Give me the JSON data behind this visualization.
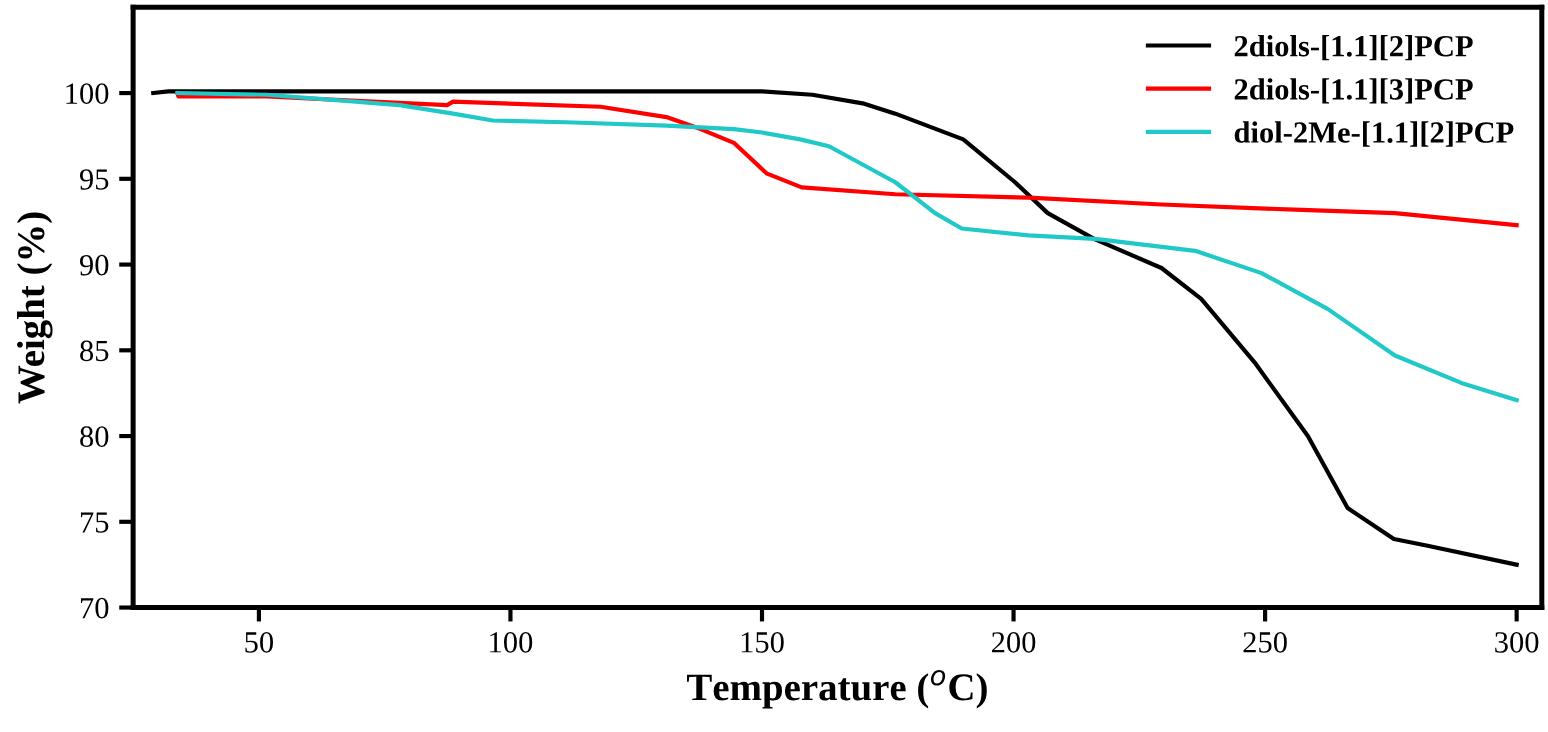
{
  "chart_data": {
    "type": "line",
    "xlabel": "Temperature ($^{o}$C)",
    "ylabel": "Weight (%)",
    "xlim": [
      25,
      305
    ],
    "ylim": [
      70,
      105
    ],
    "xticks": [
      50,
      100,
      150,
      200,
      250,
      300
    ],
    "yticks": [
      70,
      75,
      80,
      85,
      90,
      95,
      100
    ],
    "grid": false,
    "legend": "top right",
    "marker": "none",
    "line_style": "solid",
    "series": [
      {
        "name": "2diols-[1.1][2]PCP",
        "color": "#000000",
        "x": [
          29,
          32,
          50,
          100,
          150,
          160,
          170,
          176.5,
          190,
          200.3,
          206.8,
          216,
          229.4,
          237.3,
          247.9,
          258.5,
          266.4,
          275.6,
          282.3,
          300
        ],
        "values": [
          100.0,
          100.1,
          100.1,
          100.1,
          100.1,
          99.9,
          99.4,
          98.8,
          97.3,
          94.8,
          93.0,
          91.5,
          89.8,
          88.0,
          84.3,
          80.0,
          75.8,
          74.0,
          73.6,
          72.5
        ]
      },
      {
        "name": "2diols-[1.1][3]PCP",
        "color": "#ff0000",
        "x": [
          33.8,
          34,
          51.6,
          87.4,
          88.6,
          117.9,
          131,
          137.8,
          144.4,
          151,
          157.9,
          176.5,
          203,
          229.4,
          255.9,
          275.8,
          300
        ],
        "values": [
          100.0,
          99.8,
          99.8,
          99.3,
          99.5,
          99.2,
          98.6,
          97.9,
          97.1,
          95.3,
          94.5,
          94.1,
          93.9,
          93.5,
          93.2,
          93.0,
          92.3
        ]
      },
      {
        "name": "diol-2Me-[1.1][2]PCP",
        "color": "#20c8c8",
        "x": [
          33.8,
          51.6,
          78,
          88.6,
          96.5,
          111,
          131,
          144.4,
          150,
          157.6,
          163.3,
          176.5,
          184.4,
          189.7,
          203,
          216.2,
          236.1,
          249.3,
          262.5,
          275.8,
          289,
          300
        ],
        "values": [
          100.0,
          99.9,
          99.3,
          98.8,
          98.4,
          98.3,
          98.1,
          97.9,
          97.7,
          97.3,
          96.9,
          94.8,
          93.0,
          92.1,
          91.7,
          91.5,
          90.8,
          89.5,
          87.4,
          84.7,
          83.1,
          82.1
        ]
      }
    ]
  }
}
